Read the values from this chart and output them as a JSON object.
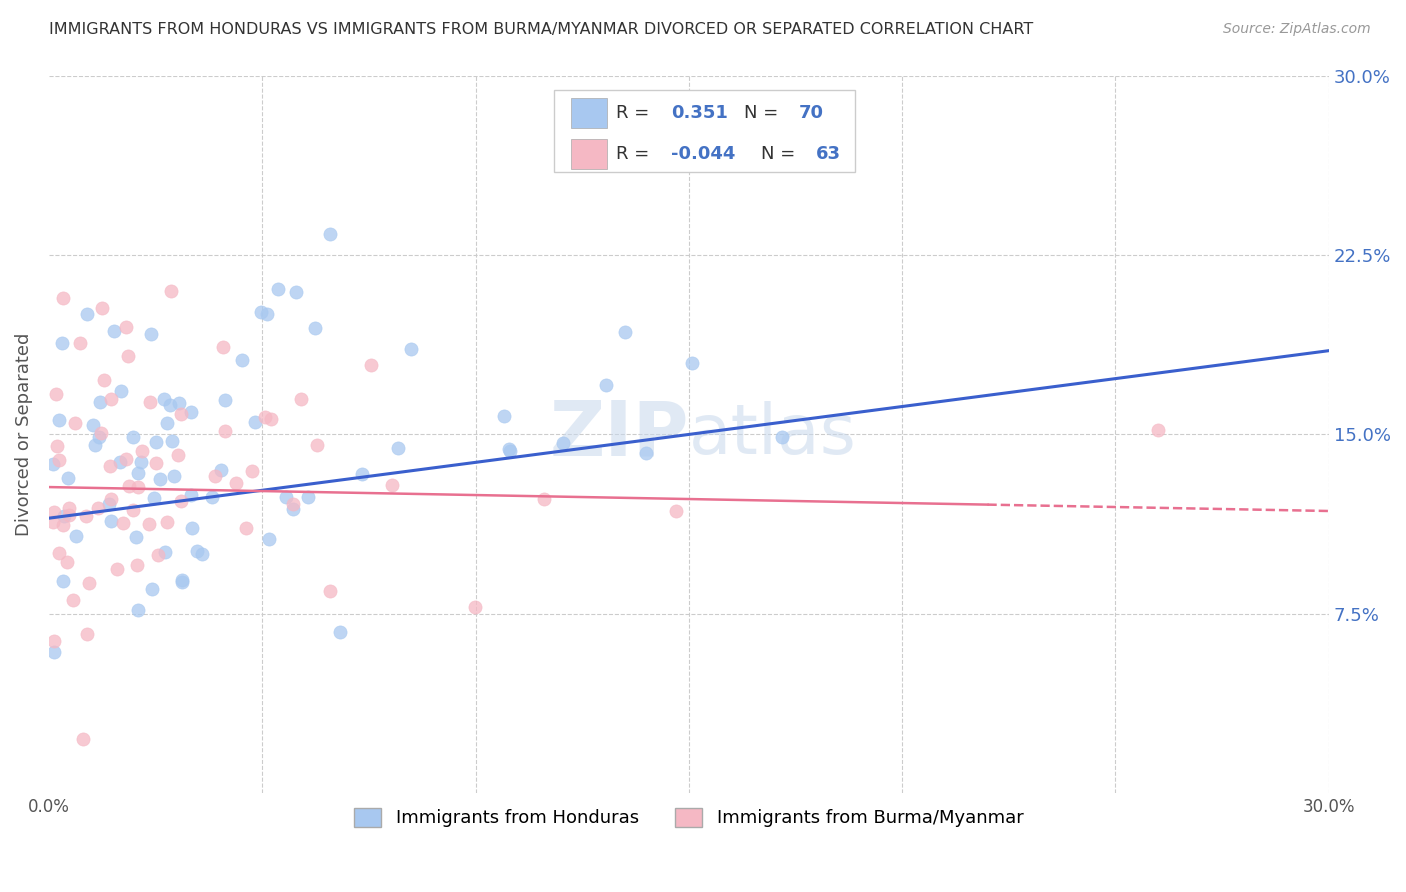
{
  "title": "IMMIGRANTS FROM HONDURAS VS IMMIGRANTS FROM BURMA/MYANMAR DIVORCED OR SEPARATED CORRELATION CHART",
  "source": "Source: ZipAtlas.com",
  "ylabel": "Divorced or Separated",
  "xlim": [
    0.0,
    0.3
  ],
  "ylim": [
    0.0,
    0.3
  ],
  "xticks": [
    0.0,
    0.05,
    0.1,
    0.15,
    0.2,
    0.25,
    0.3
  ],
  "yticks": [
    0.0,
    0.075,
    0.15,
    0.225,
    0.3
  ],
  "xtick_labels": [
    "0.0%",
    "",
    "",
    "",
    "",
    "",
    "30.0%"
  ],
  "ytick_labels_right": [
    "",
    "7.5%",
    "15.0%",
    "22.5%",
    "30.0%"
  ],
  "blue_color": "#A8C8F0",
  "pink_color": "#F5B8C4",
  "blue_line_color": "#3A5FCD",
  "pink_line_color": "#E87090",
  "watermark": "ZIPAtlas",
  "blue_R": 0.351,
  "blue_N": 70,
  "pink_R": -0.044,
  "pink_N": 63,
  "blue_line_start_y": 0.115,
  "blue_line_end_y": 0.185,
  "pink_line_start_y": 0.128,
  "pink_line_end_y": 0.118
}
